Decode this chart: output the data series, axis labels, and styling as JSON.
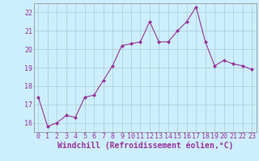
{
  "x": [
    0,
    1,
    2,
    3,
    4,
    5,
    6,
    7,
    8,
    9,
    10,
    11,
    12,
    13,
    14,
    15,
    16,
    17,
    18,
    19,
    20,
    21,
    22,
    23
  ],
  "y": [
    17.4,
    15.8,
    16.0,
    16.4,
    16.3,
    17.4,
    17.5,
    18.3,
    19.1,
    20.2,
    20.3,
    20.4,
    21.5,
    20.4,
    20.4,
    21.0,
    21.5,
    22.3,
    20.4,
    19.1,
    19.4,
    19.2,
    19.1,
    18.9
  ],
  "line_color": "#993399",
  "marker": "D",
  "marker_size": 2,
  "bg_color": "#cceeff",
  "grid_color": "#aacccc",
  "xlabel": "Windchill (Refroidissement éolien,°C)",
  "xlabel_color": "#993399",
  "xlim": [
    -0.5,
    23.5
  ],
  "ylim": [
    15.5,
    22.5
  ],
  "yticks": [
    16,
    17,
    18,
    19,
    20,
    21,
    22
  ],
  "xticks": [
    0,
    1,
    2,
    3,
    4,
    5,
    6,
    7,
    8,
    9,
    10,
    11,
    12,
    13,
    14,
    15,
    16,
    17,
    18,
    19,
    20,
    21,
    22,
    23
  ],
  "tick_color": "#993399",
  "tick_fontsize": 6,
  "xlabel_fontsize": 7,
  "linewidth": 0.8
}
